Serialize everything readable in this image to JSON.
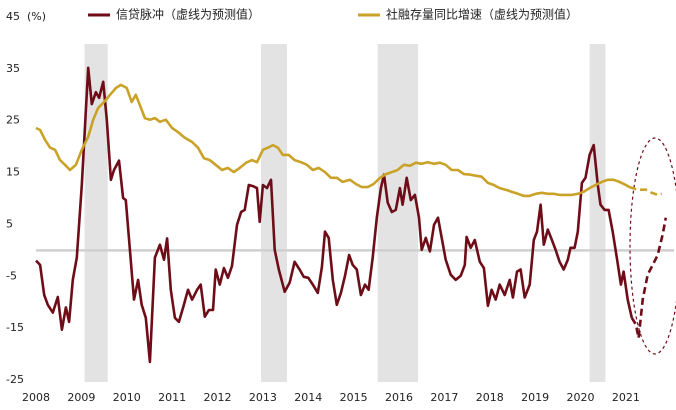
{
  "chart_data": {
    "type": "line",
    "y_unit_label": "(%)",
    "xlim": [
      2008,
      2021.95
    ],
    "xticks": [
      2008,
      2009,
      2010,
      2011,
      2012,
      2013,
      2014,
      2015,
      2016,
      2017,
      2018,
      2019,
      2020,
      2021
    ],
    "ylim": [
      -25,
      45
    ],
    "yticks": [
      -25,
      -15,
      -5,
      5,
      15,
      25,
      35,
      45
    ],
    "grid": false,
    "legend": "top",
    "highlight_ranges": [
      [
        2009.07,
        2009.58
      ],
      [
        2012.96,
        2013.53
      ],
      [
        2015.53,
        2016.42
      ],
      [
        2020.2,
        2020.55
      ]
    ],
    "series": [
      {
        "name": "信贷脉冲（虚线为预测值）",
        "color": "#6e0d17",
        "forecast_from": 2021.13,
        "x": [
          2008.0,
          2008.09,
          2008.18,
          2008.26,
          2008.37,
          2008.48,
          2008.57,
          2008.66,
          2008.73,
          2008.81,
          2008.9,
          2009.01,
          2009.15,
          2009.23,
          2009.32,
          2009.39,
          2009.48,
          2009.56,
          2009.65,
          2009.72,
          2009.83,
          2009.92,
          2009.98,
          2010.07,
          2010.16,
          2010.25,
          2010.33,
          2010.42,
          2010.51,
          2010.62,
          2010.73,
          2010.82,
          2010.89,
          2010.97,
          2011.06,
          2011.15,
          2011.26,
          2011.35,
          2011.44,
          2011.55,
          2011.63,
          2011.72,
          2011.81,
          2011.9,
          2011.96,
          2012.05,
          2012.14,
          2012.23,
          2012.32,
          2012.43,
          2012.52,
          2012.6,
          2012.69,
          2012.78,
          2012.87,
          2012.93,
          2013.0,
          2013.09,
          2013.18,
          2013.26,
          2013.35,
          2013.48,
          2013.59,
          2013.7,
          2013.81,
          2013.9,
          2014.0,
          2014.1,
          2014.21,
          2014.3,
          2014.37,
          2014.45,
          2014.54,
          2014.63,
          2014.72,
          2014.81,
          2014.9,
          2014.98,
          2015.07,
          2015.16,
          2015.25,
          2015.33,
          2015.42,
          2015.51,
          2015.6,
          2015.67,
          2015.75,
          2015.84,
          2015.93,
          2016.02,
          2016.08,
          2016.17,
          2016.26,
          2016.35,
          2016.44,
          2016.5,
          2016.59,
          2016.68,
          2016.77,
          2016.86,
          2016.95,
          2017.03,
          2017.14,
          2017.25,
          2017.36,
          2017.45,
          2017.49,
          2017.58,
          2017.67,
          2017.78,
          2017.87,
          2017.96,
          2018.04,
          2018.13,
          2018.22,
          2018.33,
          2018.44,
          2018.51,
          2018.6,
          2018.68,
          2018.77,
          2018.88,
          2018.97,
          2019.04,
          2019.12,
          2019.19,
          2019.28,
          2019.37,
          2019.45,
          2019.54,
          2019.63,
          2019.72,
          2019.78,
          2019.87,
          2019.94,
          2020.03,
          2020.11,
          2020.2,
          2020.29,
          2020.38,
          2020.44,
          2020.53,
          2020.62,
          2020.71,
          2020.8,
          2020.89,
          2020.95,
          2021.04,
          2021.13,
          2021.22,
          2021.28,
          2021.37,
          2021.48,
          2021.59,
          2021.7,
          2021.81,
          2021.88
        ],
        "values": [
          -2,
          -2.8,
          -8.6,
          -10.5,
          -12,
          -9,
          -15.3,
          -11,
          -13.8,
          -5.7,
          -1.4,
          12.6,
          35.2,
          28.2,
          30.5,
          29.4,
          32.5,
          25.2,
          13.6,
          15.5,
          17.3,
          10.1,
          9.7,
          0.1,
          -9.5,
          -5.7,
          -10.5,
          -13,
          -21.5,
          -1.4,
          1.1,
          -1.8,
          2.3,
          -7.6,
          -13,
          -13.8,
          -10.5,
          -7.6,
          -9.5,
          -7.6,
          -6.6,
          -12.8,
          -11.5,
          -11.5,
          -3.7,
          -6.6,
          -3.4,
          -5.3,
          -3,
          4.9,
          7.4,
          7.8,
          12.6,
          12.4,
          12,
          5.5,
          12.6,
          12,
          13.6,
          0.1,
          -3.7,
          -8,
          -6.2,
          -2.2,
          -3.7,
          -5.1,
          -5.3,
          -6.6,
          -8.2,
          -3.2,
          3.6,
          2.4,
          -5.7,
          -10.5,
          -8.2,
          -4.9,
          -0.9,
          -2.8,
          -3.7,
          -8.6,
          -6.6,
          -7.6,
          -1.4,
          6.3,
          12,
          14.6,
          9.2,
          7.4,
          7.8,
          12,
          8.8,
          14,
          9.7,
          10.7,
          6.3,
          0.1,
          2.4,
          -0.2,
          4.9,
          6.3,
          2,
          -1.8,
          -4.7,
          -5.7,
          -4.9,
          -2.8,
          2.6,
          0.5,
          2,
          -2.2,
          -3.4,
          -10.7,
          -7.6,
          -9.5,
          -6.6,
          -8.6,
          -5.7,
          -9.1,
          -4.1,
          -3.7,
          -9.1,
          -6.6,
          2,
          3.6,
          8.8,
          1.1,
          4,
          2,
          0.1,
          -2.2,
          -3.7,
          -1.8,
          0.5,
          0.5,
          3.6,
          13,
          14,
          18.4,
          20.3,
          12.6,
          8.8,
          7.8,
          7.8,
          3.6,
          -1.4,
          -6.6,
          -4.1,
          -9.5,
          -13,
          -14.3,
          -16.9,
          -9.5,
          -4.7,
          -2.8,
          -0.9,
          3,
          6.3
        ]
      },
      {
        "name": "社融存量同比增速（虚线为预测值）",
        "color": "#c9a227",
        "forecast_from": 2021.08,
        "x": [
          2008.0,
          2008.09,
          2008.2,
          2008.31,
          2008.42,
          2008.53,
          2008.64,
          2008.75,
          2008.88,
          2009.01,
          2009.15,
          2009.26,
          2009.37,
          2009.5,
          2009.63,
          2009.76,
          2009.87,
          2010.0,
          2010.11,
          2010.2,
          2010.29,
          2010.4,
          2010.51,
          2010.62,
          2010.73,
          2010.86,
          2011.0,
          2011.13,
          2011.28,
          2011.44,
          2011.57,
          2011.7,
          2011.83,
          2011.96,
          2012.1,
          2012.23,
          2012.36,
          2012.49,
          2012.63,
          2012.76,
          2012.87,
          2013.0,
          2013.11,
          2013.22,
          2013.33,
          2013.44,
          2013.57,
          2013.7,
          2013.84,
          2013.97,
          2014.1,
          2014.23,
          2014.37,
          2014.5,
          2014.63,
          2014.76,
          2014.92,
          2015.05,
          2015.18,
          2015.31,
          2015.44,
          2015.58,
          2015.71,
          2015.84,
          2015.97,
          2016.11,
          2016.24,
          2016.37,
          2016.5,
          2016.63,
          2016.77,
          2016.9,
          2017.03,
          2017.16,
          2017.3,
          2017.43,
          2017.56,
          2017.69,
          2017.82,
          2017.96,
          2018.09,
          2018.22,
          2018.35,
          2018.48,
          2018.62,
          2018.75,
          2018.88,
          2019.01,
          2019.15,
          2019.28,
          2019.41,
          2019.54,
          2019.67,
          2019.81,
          2019.94,
          2020.07,
          2020.2,
          2020.33,
          2020.47,
          2020.6,
          2020.73,
          2020.86,
          2021.0,
          2021.08,
          2021.26,
          2021.44,
          2021.57,
          2021.7,
          2021.79
        ],
        "values": [
          23.6,
          23.2,
          21.3,
          19.8,
          19.4,
          17.4,
          16.5,
          15.5,
          16.5,
          19.4,
          21.9,
          25.2,
          27.5,
          28.6,
          30,
          31.3,
          31.9,
          31.3,
          28.6,
          30,
          28,
          25.5,
          25.2,
          25.5,
          24.8,
          25.2,
          23.6,
          22.8,
          21.7,
          20.9,
          19.8,
          17.8,
          17.4,
          16.5,
          15.5,
          15.9,
          15.1,
          15.9,
          16.9,
          17.4,
          17,
          19.4,
          19.8,
          20.3,
          19.8,
          18.4,
          18.4,
          17.4,
          17,
          16.5,
          15.5,
          15.9,
          15.1,
          14,
          14,
          13.2,
          13.6,
          12.8,
          12.2,
          12.2,
          12.8,
          14,
          14.7,
          15.1,
          15.5,
          16.5,
          16.3,
          16.9,
          16.7,
          17,
          16.7,
          16.9,
          16.5,
          15.5,
          15.5,
          14.7,
          14.6,
          14.4,
          14.2,
          13,
          12.6,
          12,
          11.7,
          11.3,
          10.9,
          10.5,
          10.5,
          10.9,
          11.1,
          10.9,
          10.9,
          10.7,
          10.7,
          10.7,
          10.9,
          11.3,
          12,
          12.6,
          13.2,
          13.6,
          13.6,
          13.2,
          12.6,
          12.2,
          11.7,
          11.7,
          11.1,
          10.7,
          10.9
        ]
      }
    ]
  }
}
